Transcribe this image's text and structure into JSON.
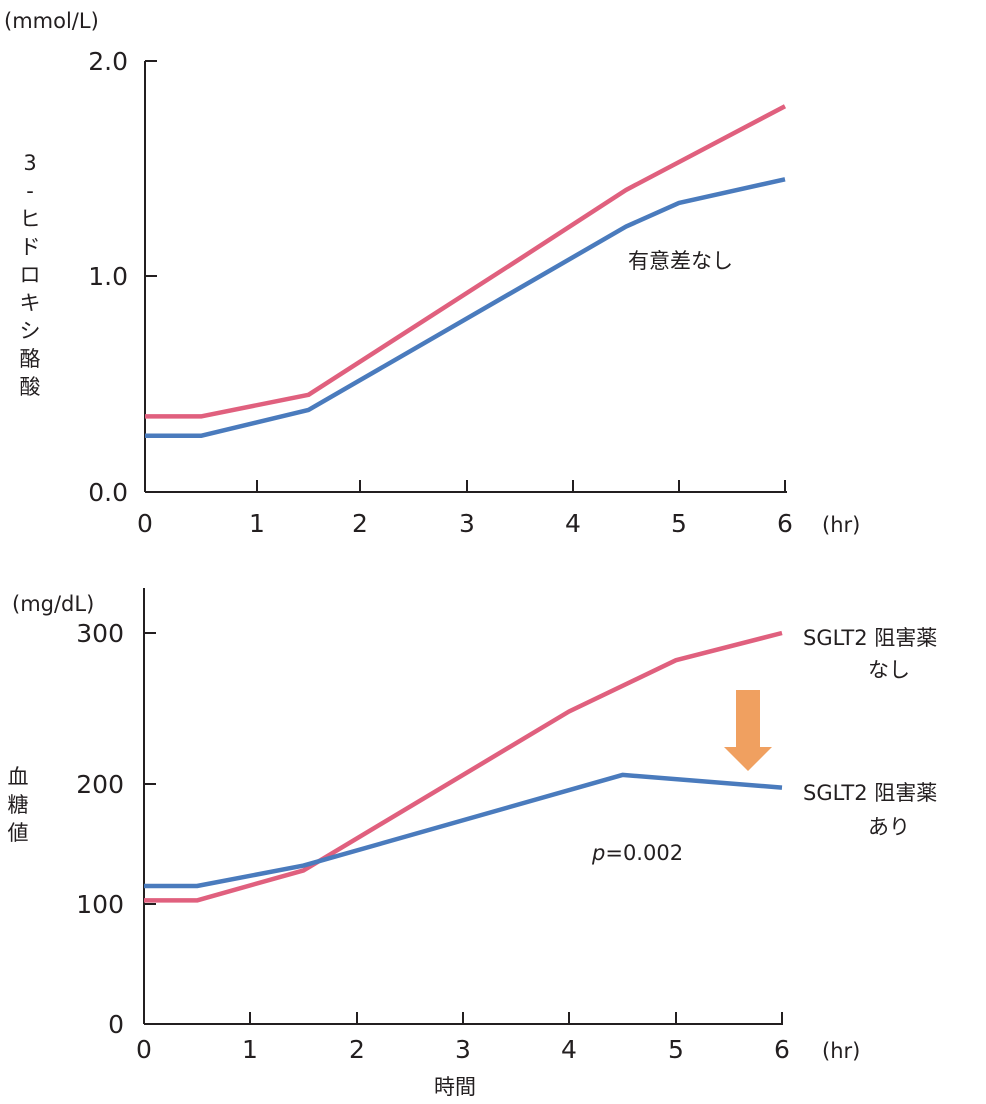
{
  "chart_data": [
    {
      "type": "line",
      "title": "",
      "ylabel": "3-ヒドロキシ酪酸",
      "ylabel_chars": [
        "3",
        "-",
        "ヒ",
        "ド",
        "ロ",
        "キ",
        "シ",
        "酪",
        "酸"
      ],
      "y_unit": "(mmol/L)",
      "x_unit": "(hr)",
      "xlabel": "",
      "xlim": [
        0,
        6
      ],
      "ylim": [
        0,
        2.0
      ],
      "x_ticks": [
        0,
        1,
        2,
        3,
        4,
        5,
        6
      ],
      "x_tick_labels": [
        "0",
        "1",
        "2",
        "3",
        "4",
        "5",
        "6"
      ],
      "y_ticks": [
        0,
        1.0,
        2.0
      ],
      "y_tick_labels": [
        "0.0",
        "1.0",
        "2.0"
      ],
      "grid": false,
      "annotation": "有意差なし",
      "series": [
        {
          "name": "SGLT2 阻害薬なし",
          "color": "#e0607e",
          "x": [
            0,
            0.5,
            1.5,
            3.5,
            4.5,
            6
          ],
          "y": [
            0.35,
            0.35,
            0.45,
            1.08,
            1.4,
            1.79
          ]
        },
        {
          "name": "SGLT2 阻害薬あり",
          "color": "#4a7bbd",
          "x": [
            0,
            0.5,
            1.5,
            4.5,
            5.0,
            6
          ],
          "y": [
            0.26,
            0.26,
            0.38,
            1.23,
            1.34,
            1.45
          ]
        }
      ]
    },
    {
      "type": "line",
      "title": "",
      "ylabel": "血糖値",
      "ylabel_chars": [
        "血",
        "糖",
        "値"
      ],
      "y_unit": "(mg/dL)",
      "x_unit": "(hr)",
      "xlabel": "時間",
      "xlim": [
        0,
        6
      ],
      "ylim": [
        0,
        300
      ],
      "x_ticks": [
        0,
        1,
        2,
        3,
        4,
        5,
        6
      ],
      "x_tick_labels": [
        "0",
        "1",
        "2",
        "3",
        "4",
        "5",
        "6"
      ],
      "y_ticks": [
        0,
        100,
        200,
        300
      ],
      "y_tick_labels": [
        "0",
        "100",
        "200",
        "300"
      ],
      "grid": false,
      "annotation": "p=0.002",
      "annotation_italic_part": "p",
      "annotation_rest": "=0.002",
      "arrow_color": "#f0a060",
      "series": [
        {
          "name": "SGLT2 阻害薬なし",
          "label_line1": "SGLT2 阻害薬",
          "label_line2": "なし",
          "color": "#e0607e",
          "x": [
            0,
            0.5,
            1.5,
            4,
            5,
            6
          ],
          "y": [
            103,
            103,
            128,
            248,
            282,
            300
          ]
        },
        {
          "name": "SGLT2 阻害薬あり",
          "label_line1": "SGLT2 阻害薬",
          "label_line2": "あり",
          "color": "#4a7bbd",
          "x": [
            0,
            0.5,
            1.5,
            4.5,
            6
          ],
          "y": [
            115,
            115,
            132,
            206,
            197
          ]
        }
      ]
    }
  ]
}
